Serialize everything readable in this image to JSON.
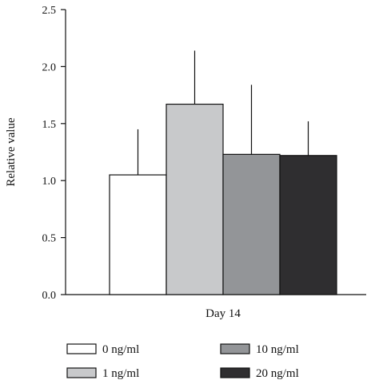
{
  "chart_data": {
    "type": "bar",
    "title": "",
    "xlabel": "",
    "ylabel": "Relative value",
    "categories": [
      "Day 14"
    ],
    "ylim": [
      0,
      2.5
    ],
    "yticks": [
      "0.0",
      "0.5",
      "1.0",
      "1.5",
      "2.0",
      "2.5"
    ],
    "grid": false,
    "legend_position": "bottom",
    "series": [
      {
        "name": "0 ng/ml",
        "values": [
          1.05
        ],
        "error": [
          0.4
        ],
        "color": "#ffffff"
      },
      {
        "name": "1 ng/ml",
        "values": [
          1.67
        ],
        "error": [
          0.47
        ],
        "color": "#c8c9cb"
      },
      {
        "name": "10 ng/ml",
        "values": [
          1.23
        ],
        "error": [
          0.61
        ],
        "color": "#939598"
      },
      {
        "name": "20 ng/ml",
        "values": [
          1.22
        ],
        "error": [
          0.3
        ],
        "color": "#2f2e30"
      }
    ]
  }
}
